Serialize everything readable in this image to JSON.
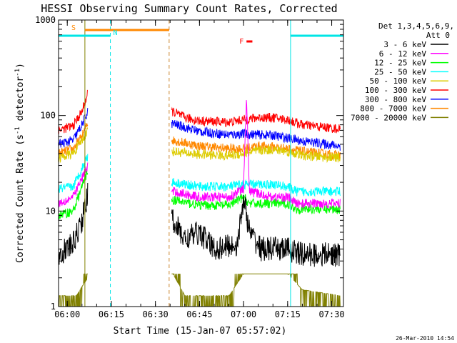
{
  "chart_data": {
    "type": "line",
    "title": "HESSI Observing Summary Count Rates, Corrected",
    "xlabel": "Start Time (15-Jan-07 05:57:02)",
    "ylabel": "Corrected Count Rate (s^-1 detector^-1)",
    "ylabel_parts": {
      "main": "Corrected Count Rate (s",
      "sup1": "-1",
      "mid": " detector",
      "sup2": "-1",
      "end": ")"
    },
    "yscale": "log",
    "xlim": [
      "05:57:02",
      "07:34:00"
    ],
    "ylim": [
      1,
      1000
    ],
    "x_ticks": [
      "06:00",
      "06:15",
      "06:30",
      "06:45",
      "07:00",
      "07:15",
      "07:30"
    ],
    "y_ticks": [
      "1",
      "10",
      "100",
      "1000"
    ],
    "legend_title": [
      "Det 1,3,4,5,6,9,",
      "Att 0"
    ],
    "legend_position": "right",
    "series": [
      {
        "name": "3 - 6 keV",
        "color": "#000000",
        "base": 3.5,
        "values": [
          [
            "05:57",
            3.5
          ],
          [
            "06:02",
            4.5
          ],
          [
            "06:05",
            8
          ],
          [
            "06:07",
            15
          ],
          [
            "06:36",
            8
          ],
          [
            "06:40",
            5
          ],
          [
            "06:45",
            6
          ],
          [
            "06:50",
            4
          ],
          [
            "06:58",
            4.5
          ],
          [
            "07:00",
            14
          ],
          [
            "07:02",
            6
          ],
          [
            "07:06",
            4
          ],
          [
            "07:15",
            4
          ],
          [
            "07:20",
            3.5
          ],
          [
            "07:33",
            3.5
          ]
        ]
      },
      {
        "name": "6 - 12 keV",
        "color": "#ff00ff",
        "base": 12,
        "values": [
          [
            "05:57",
            12
          ],
          [
            "06:02",
            14
          ],
          [
            "06:05",
            22
          ],
          [
            "06:07",
            30
          ],
          [
            "06:36",
            16
          ],
          [
            "06:45",
            14
          ],
          [
            "06:55",
            14
          ],
          [
            "07:00",
            17
          ],
          [
            "07:01",
            170
          ],
          [
            "07:02",
            16
          ],
          [
            "07:10",
            14
          ],
          [
            "07:15",
            14
          ],
          [
            "07:18",
            12
          ],
          [
            "07:33",
            12
          ]
        ]
      },
      {
        "name": "12 - 25 keV",
        "color": "#00ff00",
        "base": 10,
        "values": [
          [
            "05:57",
            9
          ],
          [
            "06:02",
            10
          ],
          [
            "06:05",
            18
          ],
          [
            "06:07",
            27
          ],
          [
            "06:36",
            13
          ],
          [
            "06:45",
            11.5
          ],
          [
            "06:55",
            11.5
          ],
          [
            "07:00",
            14
          ],
          [
            "07:02",
            12
          ],
          [
            "07:10",
            12
          ],
          [
            "07:15",
            12
          ],
          [
            "07:18",
            10.5
          ],
          [
            "07:33",
            10.5
          ]
        ]
      },
      {
        "name": "25 - 50 keV",
        "color": "#00ffff",
        "base": 17,
        "values": [
          [
            "05:57",
            17
          ],
          [
            "06:02",
            18
          ],
          [
            "06:05",
            28
          ],
          [
            "06:07",
            38
          ],
          [
            "06:36",
            20
          ],
          [
            "06:45",
            18
          ],
          [
            "06:55",
            18
          ],
          [
            "07:00",
            19
          ],
          [
            "07:10",
            19
          ],
          [
            "07:15",
            18
          ],
          [
            "07:18",
            16
          ],
          [
            "07:33",
            16
          ]
        ]
      },
      {
        "name": "50 - 100 keV",
        "color": "#ddcc00",
        "base": 36,
        "values": [
          [
            "05:57",
            36
          ],
          [
            "06:02",
            40
          ],
          [
            "06:05",
            55
          ],
          [
            "06:07",
            70
          ],
          [
            "06:36",
            42
          ],
          [
            "06:45",
            39
          ],
          [
            "06:55",
            38
          ],
          [
            "07:00",
            40
          ],
          [
            "07:05",
            43
          ],
          [
            "07:10",
            44
          ],
          [
            "07:15",
            42
          ],
          [
            "07:20",
            38
          ],
          [
            "07:33",
            36
          ]
        ]
      },
      {
        "name": "100 - 300 keV",
        "color": "#ff0000",
        "base": 70,
        "values": [
          [
            "05:57",
            70
          ],
          [
            "06:02",
            78
          ],
          [
            "06:05",
            110
          ],
          [
            "06:07",
            170
          ],
          [
            "06:36",
            110
          ],
          [
            "06:40",
            95
          ],
          [
            "06:45",
            88
          ],
          [
            "06:55",
            85
          ],
          [
            "07:00",
            90
          ],
          [
            "07:05",
            95
          ],
          [
            "07:10",
            95
          ],
          [
            "07:15",
            90
          ],
          [
            "07:20",
            80
          ],
          [
            "07:33",
            72
          ]
        ]
      },
      {
        "name": "300 - 800 keV",
        "color": "#0000ff",
        "base": 50,
        "values": [
          [
            "05:57",
            50
          ],
          [
            "06:02",
            55
          ],
          [
            "06:05",
            80
          ],
          [
            "06:07",
            110
          ],
          [
            "06:36",
            82
          ],
          [
            "06:45",
            68
          ],
          [
            "06:55",
            63
          ],
          [
            "07:00",
            64
          ],
          [
            "07:10",
            62
          ],
          [
            "07:15",
            58
          ],
          [
            "07:20",
            54
          ],
          [
            "07:33",
            48
          ]
        ]
      },
      {
        "name": "800 - 7000 keV",
        "color": "#ff8800",
        "base": 40,
        "values": [
          [
            "05:57",
            40
          ],
          [
            "06:02",
            45
          ],
          [
            "06:05",
            60
          ],
          [
            "06:07",
            85
          ],
          [
            "06:36",
            55
          ],
          [
            "06:45",
            48
          ],
          [
            "06:55",
            45
          ],
          [
            "07:00",
            45
          ],
          [
            "07:05",
            48
          ],
          [
            "07:10",
            47
          ],
          [
            "07:15",
            45
          ],
          [
            "07:20",
            42
          ],
          [
            "07:33",
            38
          ]
        ]
      },
      {
        "name": "7000 - 20000 keV",
        "color": "#808000",
        "base": 1.3,
        "values": [
          [
            "05:57",
            1.3
          ],
          [
            "06:03",
            1.3
          ],
          [
            "06:07",
            2
          ],
          [
            "06:36",
            2.2
          ],
          [
            "06:40",
            1.3
          ],
          [
            "06:55",
            1.3
          ],
          [
            "07:00",
            2.2
          ],
          [
            "07:15",
            2.2
          ],
          [
            "07:20",
            1.5
          ],
          [
            "07:33",
            1.3
          ]
        ]
      }
    ],
    "flags": [
      {
        "label": "S",
        "color": "#ff8800",
        "x0": "06:06:00",
        "x1": "06:34:40"
      },
      {
        "label": "N",
        "color": "#00e5e5",
        "x0": "05:57:02",
        "x1": "06:14:40"
      },
      {
        "label": "N",
        "color": "#00e5e5",
        "x0": "07:16:00",
        "x1": "07:34:00"
      },
      {
        "label": "F",
        "color": "#ff0000",
        "x0": "07:01:00",
        "x1": "07:03:00"
      }
    ],
    "vertical_lines": [
      {
        "x": "06:06:00",
        "color": "#808000",
        "style": "solid"
      },
      {
        "x": "06:14:40",
        "color": "#00e5e5",
        "style": "dashed"
      },
      {
        "x": "06:34:40",
        "color": "#cc8833",
        "style": "dashed"
      },
      {
        "x": "07:16:00",
        "color": "#00e5e5",
        "style": "solid"
      },
      {
        "x": "07:34:00",
        "color": "#00e5e5",
        "style": "dashed"
      }
    ],
    "gaps": [
      [
        "06:07:00",
        "06:35:30"
      ]
    ]
  },
  "footer": {
    "date_stamp": "26-Mar-2010 14:54"
  }
}
